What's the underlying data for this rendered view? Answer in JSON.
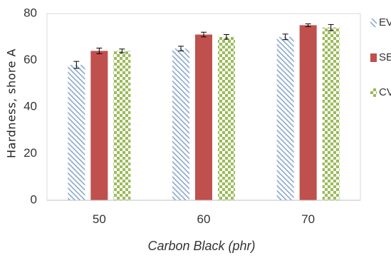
{
  "chart_data": {
    "type": "bar",
    "xlabel": "Carbon Black (phr)",
    "ylabel": "Hardness, shore A",
    "ylim": [
      0,
      80
    ],
    "yticks": [
      0,
      20,
      40,
      60,
      80
    ],
    "categories": [
      "50",
      "60",
      "70"
    ],
    "grid": false,
    "legend_position": "right",
    "series": [
      {
        "name": "EV",
        "values": [
          58,
          65,
          70
        ],
        "errors": [
          1.5,
          1.0,
          1.2
        ],
        "color": "#8aa7cc",
        "pattern": "diagonal-hatch"
      },
      {
        "name": "SEV",
        "values": [
          64,
          71,
          75
        ],
        "errors": [
          1.2,
          1.0,
          0.6
        ],
        "color": "#c0504d",
        "pattern": "solid"
      },
      {
        "name": "CV",
        "values": [
          64,
          70,
          74
        ],
        "errors": [
          0.8,
          1.0,
          1.3
        ],
        "color": "#9bbb59",
        "pattern": "checkerboard"
      }
    ]
  }
}
